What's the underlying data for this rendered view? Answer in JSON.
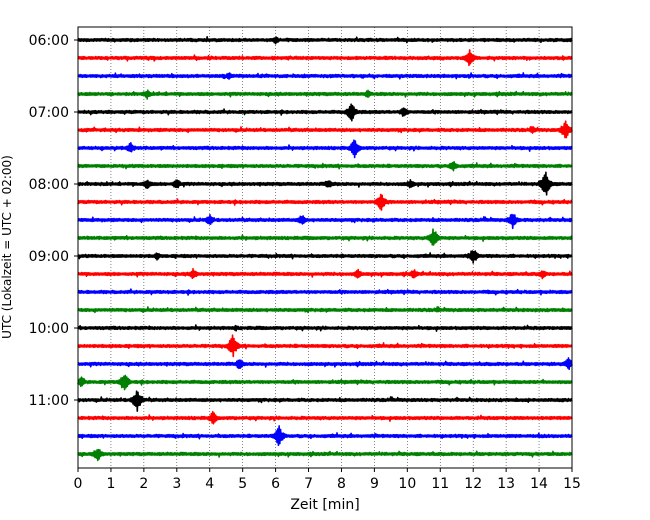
{
  "chart_data": {
    "type": "line",
    "title": "",
    "xlabel": "Zeit  [min]",
    "ylabel": "UTC (Lokalzeit = UTC + 02:00)",
    "xlim": [
      0,
      15
    ],
    "x_ticks": [
      "0",
      "1",
      "2",
      "3",
      "4",
      "5",
      "6",
      "7",
      "8",
      "9",
      "10",
      "11",
      "12",
      "13",
      "14",
      "15"
    ],
    "y_ticks": [
      "06:00",
      "07:00",
      "08:00",
      "09:00",
      "10:00",
      "11:00"
    ],
    "grid": "vertical dotted lines at each minute",
    "trace_colors": [
      "#000000",
      "#ff0000",
      "#0000ff",
      "#008000"
    ],
    "trace_interval_minutes": 15,
    "traces": [
      {
        "start": "06:00",
        "color": "#000000",
        "events": [
          [
            6.0,
            4
          ]
        ]
      },
      {
        "start": "06:15",
        "color": "#ff0000",
        "events": [
          [
            11.9,
            10
          ]
        ]
      },
      {
        "start": "06:30",
        "color": "#0000ff",
        "events": [
          [
            4.6,
            4
          ]
        ]
      },
      {
        "start": "06:45",
        "color": "#008000",
        "events": [
          [
            2.1,
            5
          ],
          [
            8.8,
            4
          ]
        ]
      },
      {
        "start": "07:00",
        "color": "#000000",
        "events": [
          [
            8.3,
            11
          ],
          [
            9.9,
            6
          ]
        ]
      },
      {
        "start": "07:15",
        "color": "#ff0000",
        "events": [
          [
            14.8,
            11
          ],
          [
            13.8,
            4
          ]
        ]
      },
      {
        "start": "07:30",
        "color": "#0000ff",
        "events": [
          [
            8.4,
            10
          ],
          [
            1.6,
            6
          ]
        ]
      },
      {
        "start": "07:45",
        "color": "#008000",
        "events": [
          [
            11.4,
            6
          ]
        ]
      },
      {
        "start": "08:00",
        "color": "#000000",
        "events": [
          [
            14.2,
            14
          ],
          [
            2.1,
            6
          ],
          [
            3.0,
            6
          ],
          [
            7.6,
            5
          ],
          [
            10.1,
            5
          ]
        ]
      },
      {
        "start": "08:15",
        "color": "#ff0000",
        "events": [
          [
            9.2,
            10
          ]
        ]
      },
      {
        "start": "08:30",
        "color": "#0000ff",
        "events": [
          [
            13.2,
            9
          ],
          [
            4.0,
            6
          ],
          [
            6.8,
            6
          ]
        ]
      },
      {
        "start": "08:45",
        "color": "#008000",
        "events": [
          [
            10.8,
            11
          ]
        ]
      },
      {
        "start": "09:00",
        "color": "#000000",
        "events": [
          [
            12.0,
            9
          ],
          [
            2.4,
            4
          ]
        ]
      },
      {
        "start": "09:15",
        "color": "#ff0000",
        "events": [
          [
            3.5,
            6
          ],
          [
            8.5,
            5
          ],
          [
            10.2,
            5
          ],
          [
            14.1,
            5
          ]
        ]
      },
      {
        "start": "09:30",
        "color": "#0000ff",
        "events": []
      },
      {
        "start": "09:45",
        "color": "#008000",
        "events": [
          [
            10.9,
            3
          ]
        ]
      },
      {
        "start": "10:00",
        "color": "#000000",
        "events": [
          [
            4.8,
            3
          ]
        ]
      },
      {
        "start": "10:15",
        "color": "#ff0000",
        "events": [
          [
            4.7,
            12
          ]
        ]
      },
      {
        "start": "10:30",
        "color": "#0000ff",
        "events": [
          [
            4.9,
            6
          ],
          [
            14.9,
            7
          ]
        ]
      },
      {
        "start": "10:45",
        "color": "#008000",
        "events": [
          [
            1.4,
            11
          ],
          [
            0.1,
            6
          ]
        ]
      },
      {
        "start": "11:00",
        "color": "#000000",
        "events": [
          [
            1.8,
            13
          ]
        ]
      },
      {
        "start": "11:15",
        "color": "#ff0000",
        "events": [
          [
            4.1,
            7
          ]
        ]
      },
      {
        "start": "11:30",
        "color": "#0000ff",
        "events": [
          [
            6.1,
            11
          ]
        ]
      },
      {
        "start": "11:45",
        "color": "#008000",
        "events": [
          [
            0.6,
            8
          ]
        ]
      }
    ]
  }
}
